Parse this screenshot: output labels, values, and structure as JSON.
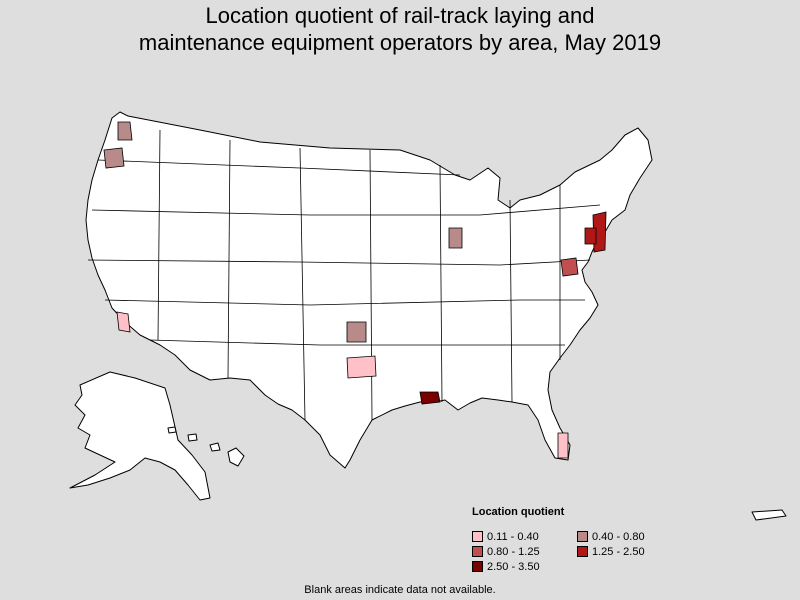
{
  "title_line1": "Location quotient of rail-track laying and",
  "title_line2": "maintenance equipment operators by area, May 2019",
  "legend": {
    "title": "Location quotient",
    "items": [
      {
        "label": "0.11 - 0.40",
        "color": "#ffc0c8"
      },
      {
        "label": "0.40 - 0.80",
        "color": "#b98a8a"
      },
      {
        "label": "0.80 - 1.25",
        "color": "#c05050"
      },
      {
        "label": "1.25 - 2.50",
        "color": "#b01818"
      },
      {
        "label": "2.50 - 3.50",
        "color": "#7a0000"
      }
    ]
  },
  "footnote": "Blank areas indicate data not available.",
  "colors": {
    "background": "#dedede",
    "land": "#ffffff",
    "border": "#000000"
  }
}
